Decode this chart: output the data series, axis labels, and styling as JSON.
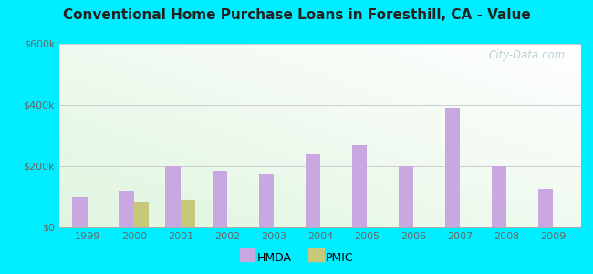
{
  "title": "Conventional Home Purchase Loans in Foresthill, CA - Value",
  "years": [
    1999,
    2000,
    2001,
    2002,
    2003,
    2004,
    2005,
    2006,
    2007,
    2008,
    2009
  ],
  "hmda_values": [
    100000,
    120000,
    200000,
    185000,
    175000,
    240000,
    270000,
    200000,
    390000,
    200000,
    125000
  ],
  "pmic_values": [
    0,
    85000,
    90000,
    0,
    0,
    0,
    0,
    0,
    0,
    0,
    0
  ],
  "hmda_color": "#c9a8e2",
  "pmic_color": "#c8c87a",
  "outer_bg": "#00eeff",
  "plot_bg_left": "#d8f0d0",
  "plot_bg_right": "#f8fff8",
  "ylim": [
    0,
    600000
  ],
  "yticks": [
    0,
    200000,
    400000,
    600000
  ],
  "ytick_labels": [
    "$0",
    "$200k",
    "$400k",
    "$600k"
  ],
  "grid_color": "#cccccc",
  "watermark": "City-Data.com",
  "legend_labels": [
    "HMDA",
    "PMIC"
  ],
  "bar_width": 0.32,
  "tick_color": "#666666",
  "tick_fontsize": 8
}
